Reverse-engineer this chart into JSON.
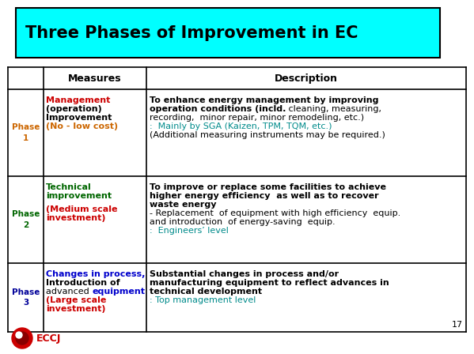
{
  "title": "Three Phases of Improvement in EC",
  "title_bg": "#00FFFF",
  "bg_color": "#FFFFFF",
  "page_number": "17",
  "eccj_logo_text": "ECCJ",
  "rows": [
    {
      "phase_label": "Phase\n1",
      "phase_color": "#CC6600",
      "measures": [
        {
          "text": "Management",
          "color": "#CC0000",
          "bold": true,
          "size": 8
        },
        {
          "text": "(operation)",
          "color": "#000000",
          "bold": true,
          "size": 8
        },
        {
          "text": "Improvement",
          "color": "#000000",
          "bold": true,
          "size": 8
        },
        {
          "text": "(No - low cost)",
          "color": "#CC6600",
          "bold": true,
          "size": 8
        }
      ],
      "desc": [
        {
          "text": "To enhance energy management by improving",
          "color": "#000000",
          "bold": true,
          "size": 8
        },
        {
          "text": "operation conditions (incld.",
          "color": "#000000",
          "bold": true,
          "size": 8,
          "cont": " cleaning, measuring,",
          "cont_bold": false
        },
        {
          "text": "recording,  minor repair, minor remodeling, etc.)",
          "color": "#000000",
          "bold": false,
          "size": 8
        },
        {
          "text": ":  Mainly by SGA (Kaizen, TPM, TQM, etc.)",
          "color": "#008B8B",
          "bold": false,
          "size": 8
        },
        {
          "text": "(Additional measuring instruments may be required.)",
          "color": "#000000",
          "bold": false,
          "size": 8
        }
      ]
    },
    {
      "phase_label": "Phase\n2",
      "phase_color": "#006600",
      "measures": [
        {
          "text": "Technical",
          "color": "#006600",
          "bold": true,
          "size": 8
        },
        {
          "text": "improvement",
          "color": "#006600",
          "bold": true,
          "size": 8
        },
        {
          "text": " ",
          "color": "#000000",
          "bold": false,
          "size": 5
        },
        {
          "text": "(Medium scale",
          "color": "#CC0000",
          "bold": true,
          "size": 8
        },
        {
          "text": "investment)",
          "color": "#CC0000",
          "bold": true,
          "size": 8
        }
      ],
      "desc": [
        {
          "text": "To improve or replace some facilities to achieve",
          "color": "#000000",
          "bold": true,
          "size": 8
        },
        {
          "text": "higher energy efficiency  as well as to recover",
          "color": "#000000",
          "bold": true,
          "size": 8
        },
        {
          "text": "waste energy",
          "color": "#000000",
          "bold": true,
          "size": 8
        },
        {
          "text": "- Replacement  of equipment with high efficiency  equip.",
          "color": "#000000",
          "bold": false,
          "size": 8
        },
        {
          "text": "and introduction  of energy-saving  equip.",
          "color": "#000000",
          "bold": false,
          "size": 8
        },
        {
          "text": ":  Engineers’ level",
          "color": "#008B8B",
          "bold": false,
          "size": 8
        }
      ]
    },
    {
      "phase_label": "Phase\n3",
      "phase_color": "#000099",
      "measures": [
        {
          "text": "Changes in process,",
          "color": "#0000CC",
          "bold": true,
          "size": 8
        },
        {
          "text": "Introduction of",
          "color": "#000000",
          "bold": true,
          "size": 8
        },
        {
          "text": "advanced ",
          "color": "#000000",
          "bold": false,
          "size": 8,
          "cont": "equipment",
          "cont_color": "#0000CC",
          "cont_bold": true
        },
        {
          "text": "(Large scale",
          "color": "#CC0000",
          "bold": true,
          "size": 8
        },
        {
          "text": "investment)",
          "color": "#CC0000",
          "bold": true,
          "size": 8
        }
      ],
      "desc": [
        {
          "text": "Substantial changes in process and/or",
          "color": "#000000",
          "bold": true,
          "size": 8
        },
        {
          "text": "manufacturing equipment to reflect advances in",
          "color": "#000000",
          "bold": true,
          "size": 8
        },
        {
          "text": "technical development",
          "color": "#000000",
          "bold": true,
          "size": 8
        },
        {
          "text": ": Top management level",
          "color": "#008B8B",
          "bold": false,
          "size": 8
        }
      ]
    }
  ]
}
